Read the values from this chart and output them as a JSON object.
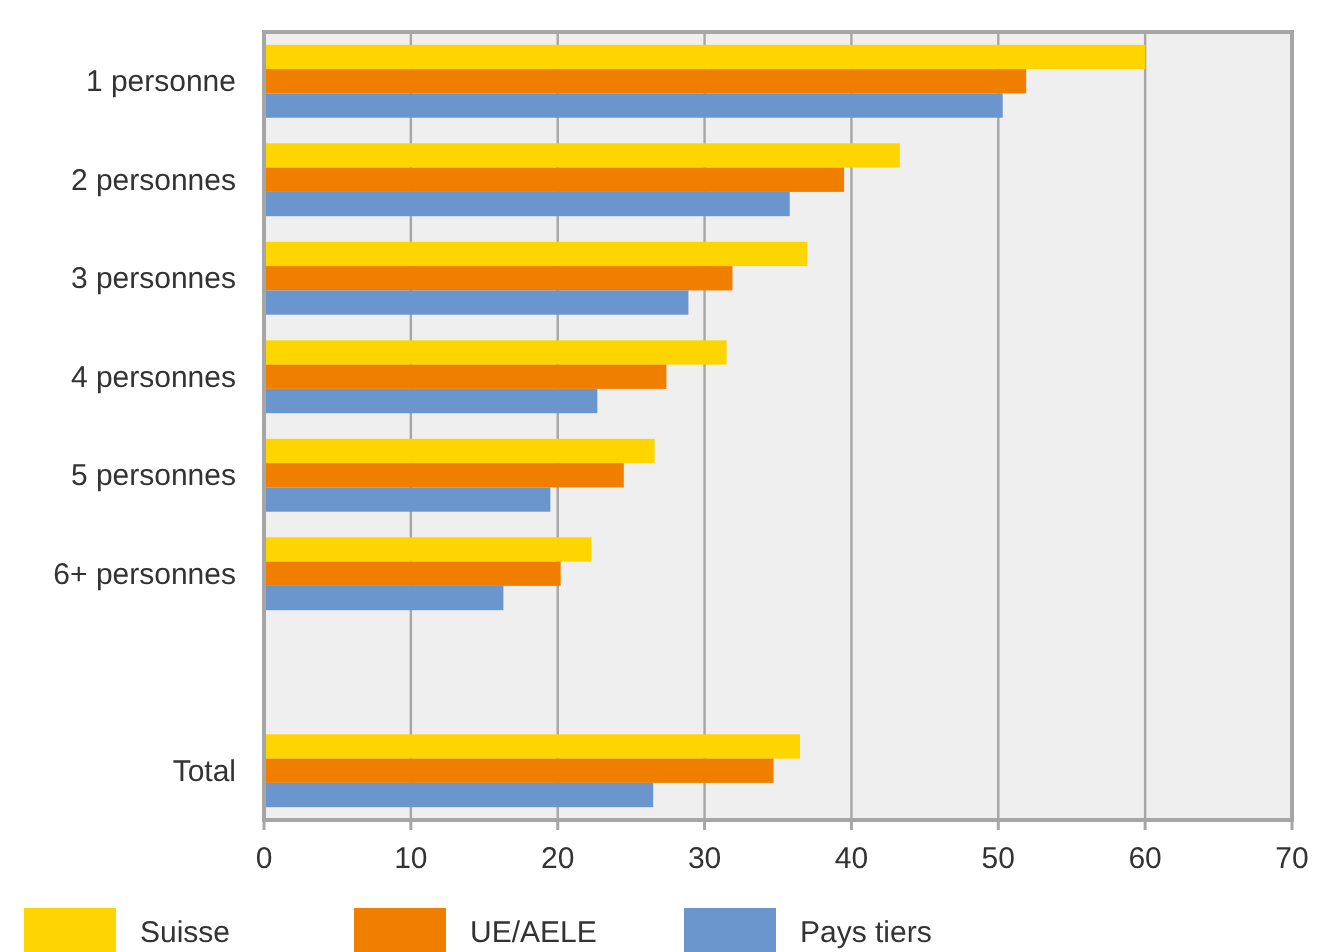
{
  "chart_data": {
    "type": "bar",
    "orientation": "horizontal",
    "categories": [
      "1 personne",
      "2 personnes",
      "3 personnes",
      "4 personnes",
      "5 personnes",
      "6+ personnes",
      null,
      "Total"
    ],
    "series": [
      {
        "name": "Suisse",
        "color": "#ffd500",
        "values": [
          60,
          43.3,
          37,
          31.5,
          26.6,
          22.3,
          null,
          36.5
        ]
      },
      {
        "name": "UE/AELE",
        "color": "#f07f00",
        "values": [
          51.9,
          39.5,
          31.9,
          27.4,
          24.5,
          20.2,
          null,
          34.7
        ]
      },
      {
        "name": "Pays tiers",
        "color": "#6a95cd",
        "values": [
          50.3,
          35.8,
          28.9,
          22.7,
          19.5,
          16.3,
          null,
          26.5
        ]
      }
    ],
    "xlim": [
      0,
      70
    ],
    "xticks": [
      0,
      10,
      20,
      30,
      40,
      50,
      60,
      70
    ],
    "grid": "x",
    "legend": "bottom"
  }
}
